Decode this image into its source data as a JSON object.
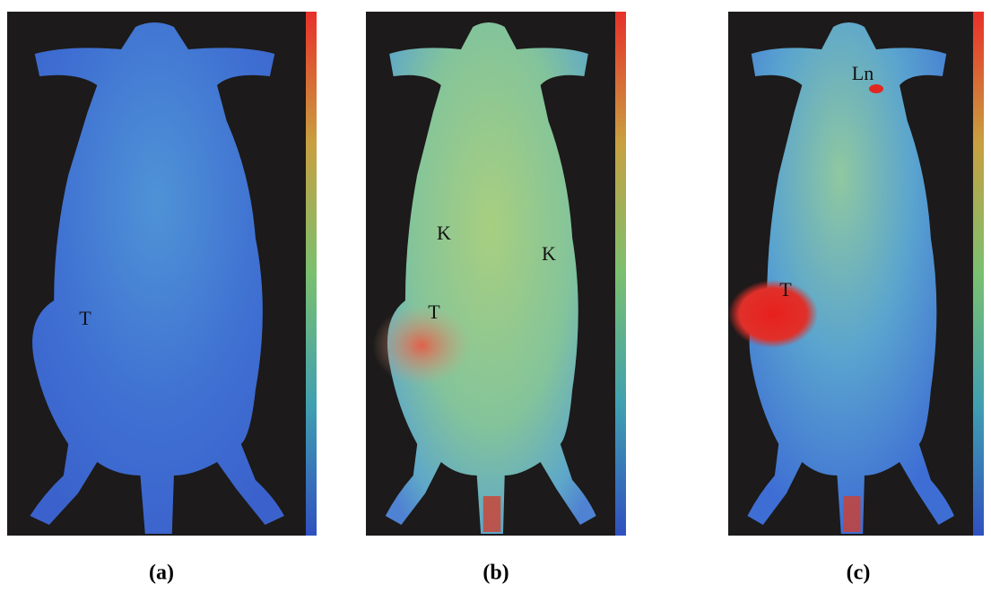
{
  "panels": [
    {
      "label": "(a)",
      "annotations": [
        "T"
      ]
    },
    {
      "label": "(b)",
      "annotations": [
        "K",
        "K",
        "T"
      ]
    },
    {
      "label": "(c)",
      "annotations": [
        "Ln",
        "T"
      ]
    }
  ]
}
